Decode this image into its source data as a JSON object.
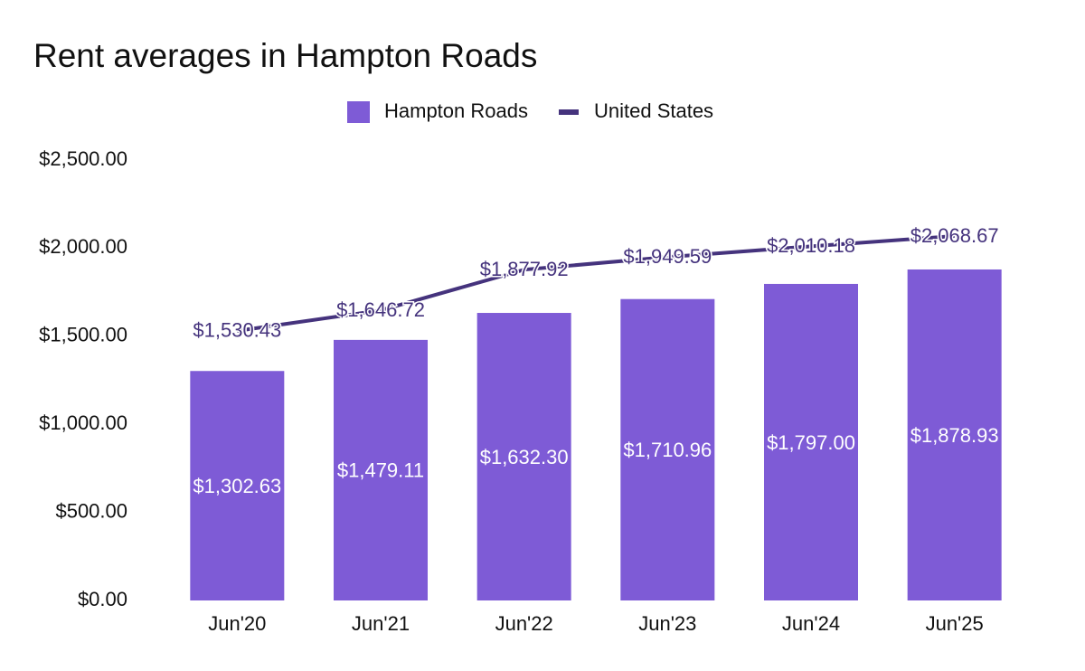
{
  "chart_data": {
    "type": "combo",
    "title": "Rent averages in Hampton Roads",
    "categories": [
      "Jun'20",
      "Jun'21",
      "Jun'22",
      "Jun'23",
      "Jun'24",
      "Jun'25"
    ],
    "series": [
      {
        "name": "Hampton Roads",
        "type": "bar",
        "color": "#7e5bd6",
        "values": [
          1302.63,
          1479.11,
          1632.3,
          1710.96,
          1797.0,
          1878.93
        ],
        "value_labels": [
          "$1,302.63",
          "$1,479.11",
          "$1,632.30",
          "$1,710.96",
          "$1,797.00",
          "$1,878.93"
        ]
      },
      {
        "name": "United States",
        "type": "line",
        "color": "#45337d",
        "values": [
          1530.43,
          1646.72,
          1877.92,
          1949.59,
          2010.18,
          2068.67
        ],
        "value_labels": [
          "$1,530.43",
          "$1,646.72",
          "$1,877.92",
          "$1,949.59",
          "$2,010.18",
          "$2,068.67"
        ]
      }
    ],
    "ylim": [
      0,
      2500
    ],
    "yticks": [
      {
        "value": 0,
        "label": "$0.00"
      },
      {
        "value": 500,
        "label": "$500.00"
      },
      {
        "value": 1000,
        "label": "$1,000.00"
      },
      {
        "value": 1500,
        "label": "$1,500.00"
      },
      {
        "value": 2000,
        "label": "$2,000.00"
      },
      {
        "value": 2500,
        "label": "$2,500.00"
      }
    ],
    "grid": false,
    "legend": "top"
  }
}
